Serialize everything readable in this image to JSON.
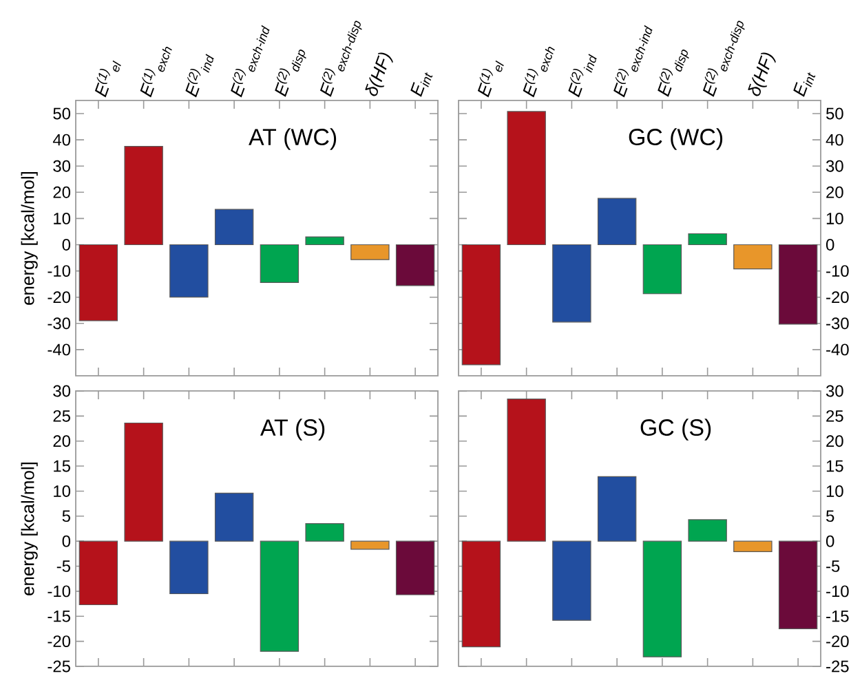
{
  "chart_data": [
    {
      "type": "bar",
      "title": "AT (WC)",
      "ylabel": "energy [kcal/mol]",
      "categories": [
        "E$^{(1)}$$_{el}$",
        "E$^{(1)}$$_{exch}$",
        "E$^{(2)}$$_{ind}$",
        "E$^{(2)}$$_{exch-ind}$",
        "E$^{(2)}$$_{disp}$",
        "E$^{(2)}$$_{exch-disp}$",
        "δ(HF)",
        "E$_{int}$"
      ],
      "values": [
        -29,
        37.5,
        -20,
        13.5,
        -14.4,
        3,
        -5.7,
        -15.6
      ],
      "colors": [
        "#b5121b",
        "#b5121b",
        "#224ea0",
        "#224ea0",
        "#00a550",
        "#00a550",
        "#e8962a",
        "#6b0a3a"
      ],
      "ylim": [
        -50,
        55
      ],
      "yticks": [
        -40,
        -30,
        -20,
        -10,
        0,
        10,
        20,
        30,
        40,
        50
      ]
    },
    {
      "type": "bar",
      "title": "GC (WC)",
      "categories": [
        "E$^{(1)}$$_{el}$",
        "E$^{(1)}$$_{exch}$",
        "E$^{(2)}$$_{ind}$",
        "E$^{(2)}$$_{exch-ind}$",
        "E$^{(2)}$$_{disp}$",
        "E$^{(2)}$$_{exch-disp}$",
        "δ(HF)",
        "E$_{int}$"
      ],
      "values": [
        -45.8,
        50.8,
        -29.5,
        17.7,
        -18.7,
        4.2,
        -9.2,
        -30.3
      ],
      "colors": [
        "#b5121b",
        "#b5121b",
        "#224ea0",
        "#224ea0",
        "#00a550",
        "#00a550",
        "#e8962a",
        "#6b0a3a"
      ],
      "ylim": [
        -50,
        55
      ],
      "yticks": [
        -40,
        -30,
        -20,
        -10,
        0,
        10,
        20,
        30,
        40,
        50
      ]
    },
    {
      "type": "bar",
      "title": "AT (S)",
      "ylabel": "energy [kcal/mol]",
      "categories": [
        null,
        null,
        null,
        null,
        null,
        null,
        null,
        null
      ],
      "values": [
        -12.7,
        23.6,
        -10.5,
        9.6,
        -22,
        3.5,
        -1.6,
        -10.7
      ],
      "colors": [
        "#b5121b",
        "#b5121b",
        "#224ea0",
        "#224ea0",
        "#00a550",
        "#00a550",
        "#e8962a",
        "#6b0a3a"
      ],
      "ylim": [
        -25,
        30
      ],
      "yticks": [
        -25,
        -20,
        -15,
        -10,
        -5,
        0,
        5,
        10,
        15,
        20,
        25,
        30
      ],
      "tick_labels": "y"
    },
    {
      "type": "bar",
      "title": "GC (S)",
      "categories": [
        null,
        null,
        null,
        null,
        null,
        null,
        null,
        null
      ],
      "values": [
        -21.1,
        28.4,
        -15.8,
        12.9,
        -23.1,
        4.3,
        -2.1,
        -17.5
      ],
      "colors": [
        "#b5121b",
        "#b5121b",
        "#224ea0",
        "#224ea0",
        "#00a550",
        "#00a550",
        "#e8962a",
        "#6b0a3a"
      ],
      "ylim": [
        -25,
        30
      ],
      "yticks": [
        -25,
        -20,
        -15,
        -10,
        -5,
        0,
        5,
        10,
        15,
        20,
        25,
        30
      ],
      "tick_labels": "y"
    }
  ]
}
